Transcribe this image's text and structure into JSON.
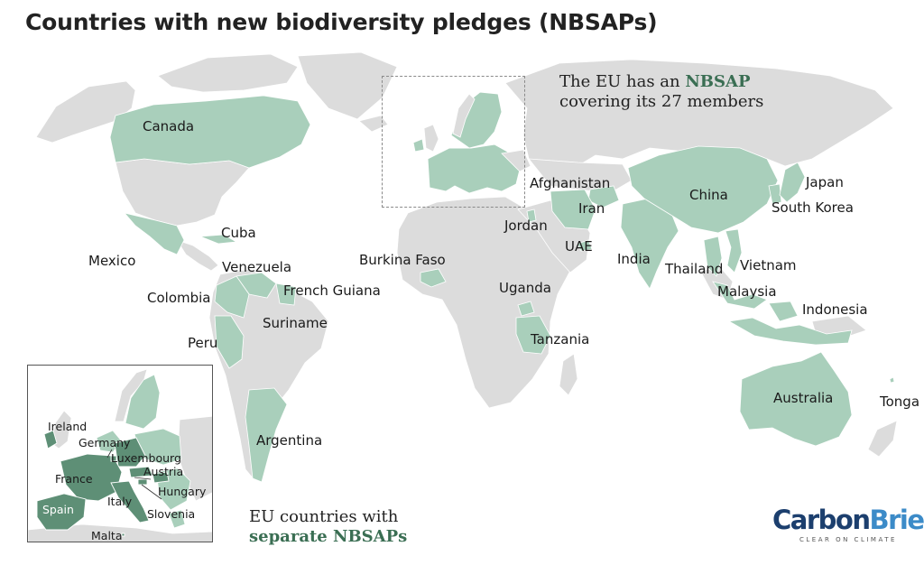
{
  "title": "Countries with new biodiversity pledges (NBSAPs)",
  "colors": {
    "land": "#dcdcdc",
    "nbsap": "#a9cfbb",
    "separate_nbsap": "#5e8f76",
    "border": "#ffffff"
  },
  "countries": [
    "Canada",
    "Mexico",
    "Cuba",
    "Venezuela",
    "Colombia",
    "French Guiana",
    "Suriname",
    "Peru",
    "Argentina",
    "Burkina Faso",
    "Jordan",
    "Afghanistan",
    "Iran",
    "UAE",
    "Uganda",
    "Tanzania",
    "India",
    "China",
    "Japan",
    "South Korea",
    "Thailand",
    "Vietnam",
    "Malaysia",
    "Indonesia",
    "Australia",
    "Tonga"
  ],
  "eu_annotation": {
    "line1_pre": "The EU has an ",
    "line1_highlight": "NBSAP",
    "line2": "covering its 27 members"
  },
  "inset": {
    "countries": [
      "Ireland",
      "Germany",
      "Luxembourg",
      "France",
      "Austria",
      "Hungary",
      "Spain",
      "Italy",
      "Slovenia",
      "Malta"
    ],
    "caption_line1": "EU countries with",
    "caption_line2": "separate NBSAPs"
  },
  "logo": {
    "part1": "Carbon",
    "part2": "Brief",
    "tagline": "CLEAR ON CLIMATE"
  }
}
